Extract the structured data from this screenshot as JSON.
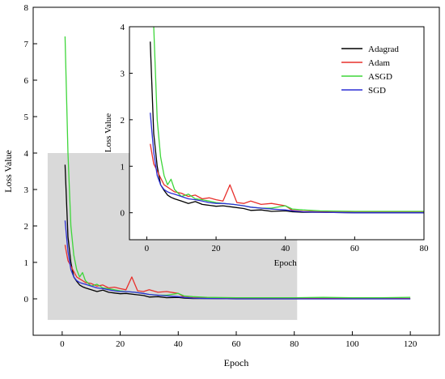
{
  "chart_data": [
    {
      "type": "line",
      "xlabel": "Epoch",
      "ylabel": "Loss Value",
      "xlim": [
        -10,
        130
      ],
      "ylim": [
        -1,
        8
      ],
      "xticks": [
        0,
        20,
        40,
        60,
        80,
        100,
        120
      ],
      "yticks": [
        0,
        1,
        2,
        3,
        4,
        5,
        6,
        7,
        8
      ],
      "grid": false,
      "highlight_region": {
        "x": [
          -5,
          81
        ],
        "y": [
          -0.58,
          4.0
        ],
        "color": "#d9d9d9"
      },
      "series": [
        {
          "name": "Adagrad",
          "color": "#000000",
          "x": [
            1,
            2,
            3,
            4,
            5,
            6,
            7,
            8,
            10,
            12,
            14,
            16,
            18,
            20,
            22,
            25,
            28,
            30,
            33,
            36,
            40,
            42,
            45,
            50,
            60,
            70,
            80,
            90,
            100,
            110,
            120
          ],
          "y": [
            3.68,
            1.7,
            1.0,
            0.6,
            0.48,
            0.38,
            0.33,
            0.3,
            0.25,
            0.2,
            0.24,
            0.18,
            0.16,
            0.14,
            0.15,
            0.12,
            0.09,
            0.05,
            0.06,
            0.03,
            0.04,
            0.02,
            0.01,
            0.01,
            0.0,
            0.0,
            0.0,
            0.0,
            0.0,
            0.0,
            0.0
          ]
        },
        {
          "name": "Adam",
          "color": "#e8302c",
          "x": [
            1,
            2,
            3,
            4,
            5,
            6,
            7,
            8,
            10,
            12,
            14,
            16,
            18,
            20,
            22,
            24,
            26,
            28,
            30,
            33,
            36,
            40,
            42,
            45,
            50,
            60,
            70,
            80,
            90,
            100,
            110,
            120
          ],
          "y": [
            1.48,
            1.05,
            0.9,
            0.75,
            0.6,
            0.55,
            0.5,
            0.45,
            0.42,
            0.35,
            0.38,
            0.3,
            0.32,
            0.28,
            0.25,
            0.6,
            0.22,
            0.2,
            0.25,
            0.18,
            0.2,
            0.15,
            0.05,
            0.03,
            0.02,
            0.01,
            0.01,
            0.01,
            0.01,
            0.01,
            0.01,
            0.01
          ]
        },
        {
          "name": "ASGD",
          "color": "#3ed63a",
          "x": [
            1,
            2,
            3,
            4,
            5,
            6,
            7,
            8,
            10,
            12,
            14,
            16,
            18,
            20,
            22,
            25,
            28,
            30,
            33,
            36,
            40,
            42,
            45,
            50,
            60,
            70,
            80,
            90,
            100,
            110,
            120
          ],
          "y": [
            7.2,
            4.0,
            2.0,
            1.2,
            0.8,
            0.6,
            0.72,
            0.5,
            0.35,
            0.4,
            0.3,
            0.28,
            0.25,
            0.22,
            0.2,
            0.18,
            0.15,
            0.12,
            0.1,
            0.1,
            0.15,
            0.08,
            0.06,
            0.04,
            0.03,
            0.03,
            0.03,
            0.04,
            0.03,
            0.03,
            0.04
          ]
        },
        {
          "name": "SGD",
          "color": "#2b2ed6",
          "x": [
            1,
            2,
            3,
            4,
            5,
            6,
            7,
            8,
            10,
            12,
            14,
            16,
            18,
            20,
            22,
            25,
            28,
            30,
            33,
            36,
            40,
            42,
            45,
            50,
            60,
            70,
            80,
            90,
            100,
            110,
            120
          ],
          "y": [
            2.15,
            1.3,
            0.8,
            0.6,
            0.5,
            0.45,
            0.42,
            0.4,
            0.35,
            0.3,
            0.28,
            0.25,
            0.22,
            0.2,
            0.2,
            0.18,
            0.15,
            0.12,
            0.1,
            0.08,
            0.06,
            0.04,
            0.02,
            0.01,
            0.0,
            0.0,
            0.0,
            0.0,
            0.0,
            0.0,
            0.0
          ]
        }
      ]
    },
    {
      "type": "line",
      "xlabel": "Epoch",
      "ylabel": "Loss Value",
      "xlim": [
        -5,
        80
      ],
      "ylim": [
        -0.58,
        4
      ],
      "xticks": [
        0,
        20,
        40,
        60,
        80
      ],
      "yticks": [
        0,
        1,
        2,
        3,
        4
      ],
      "grid": false,
      "legend": "top-right",
      "series_ref": "same series as main chart"
    }
  ]
}
